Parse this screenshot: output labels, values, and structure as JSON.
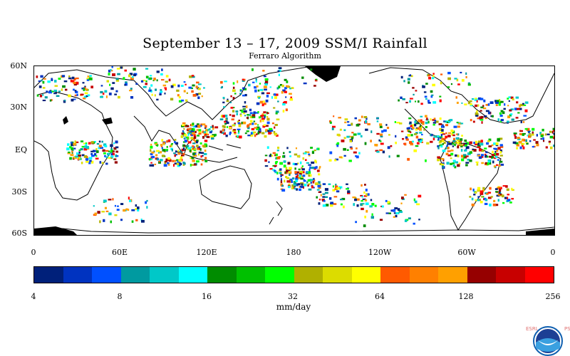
{
  "title": "September 13 – 17, 2009 SSM/I Rainfall",
  "subtitle": "Ferraro Algorithm",
  "lat_labels": [
    "60N",
    "30N",
    "EQ",
    "30S",
    "60S"
  ],
  "lon_labels": [
    "0",
    "60E",
    "120E",
    "180",
    "120W",
    "60W",
    "0"
  ],
  "colorbar": {
    "tick_labels": [
      "4",
      "8",
      "16",
      "32",
      "64",
      "128",
      "256"
    ],
    "units": "mm/day",
    "colors": [
      "#00207a",
      "#0033c0",
      "#0050ff",
      "#009aa0",
      "#00c8c8",
      "#00ffff",
      "#008c00",
      "#00c000",
      "#00ff00",
      "#b0b000",
      "#dcdc00",
      "#ffff00",
      "#ff5a00",
      "#ff8000",
      "#ffa000",
      "#960000",
      "#c80000",
      "#ff0000"
    ]
  },
  "logo": {
    "org_left": "ESRL",
    "org_right": "PSD",
    "icon": "noaa-logo-icon"
  },
  "chart_data": {
    "type": "heatmap",
    "title": "September 13 – 17, 2009 SSM/I Rainfall",
    "subtitle": "Ferraro Algorithm",
    "x_range": [
      "0",
      "0"
    ],
    "y_range": [
      "60S",
      "60N"
    ],
    "colorbar_scale": "log2",
    "colorbar_range": [
      4,
      256
    ],
    "units": "mm/day"
  }
}
